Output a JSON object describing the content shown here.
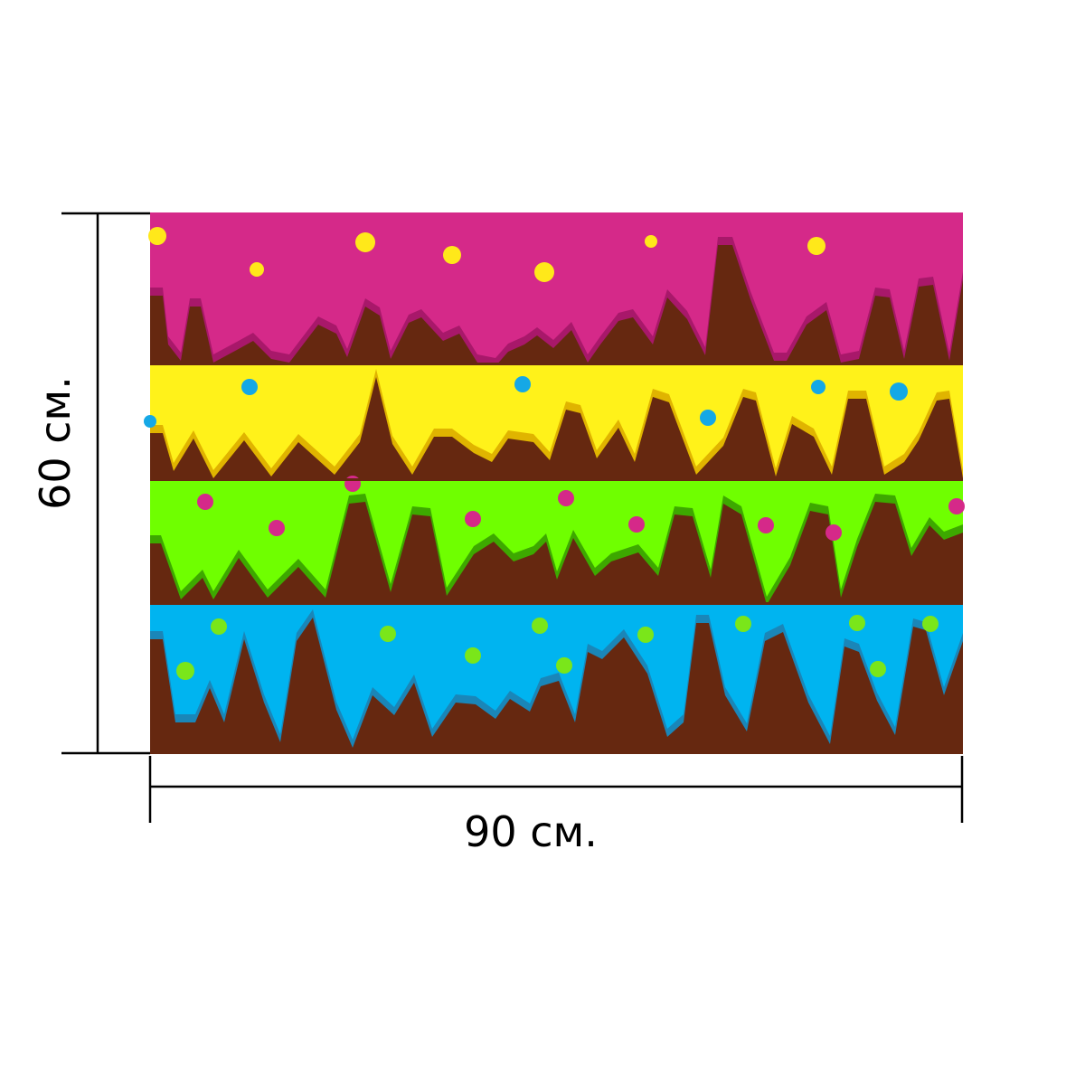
{
  "dimensions": {
    "height_label": "60 см.",
    "width_label": "90 см."
  },
  "artwork": {
    "chocolate_color": "#662810",
    "bands": [
      {
        "name": "pink",
        "icing": "#d52989",
        "shade": "#a8186a",
        "sprinkle": "#ffe81a"
      },
      {
        "name": "yellow",
        "icing": "#fff21a",
        "shade": "#e0b400",
        "sprinkle": "#15a8e6"
      },
      {
        "name": "green",
        "icing": "#6fff00",
        "shade": "#3da800",
        "sprinkle": "#d52989"
      },
      {
        "name": "blue",
        "icing": "#00b4f0",
        "shade": "#1a86b8",
        "sprinkle": "#7ae61a"
      }
    ]
  }
}
